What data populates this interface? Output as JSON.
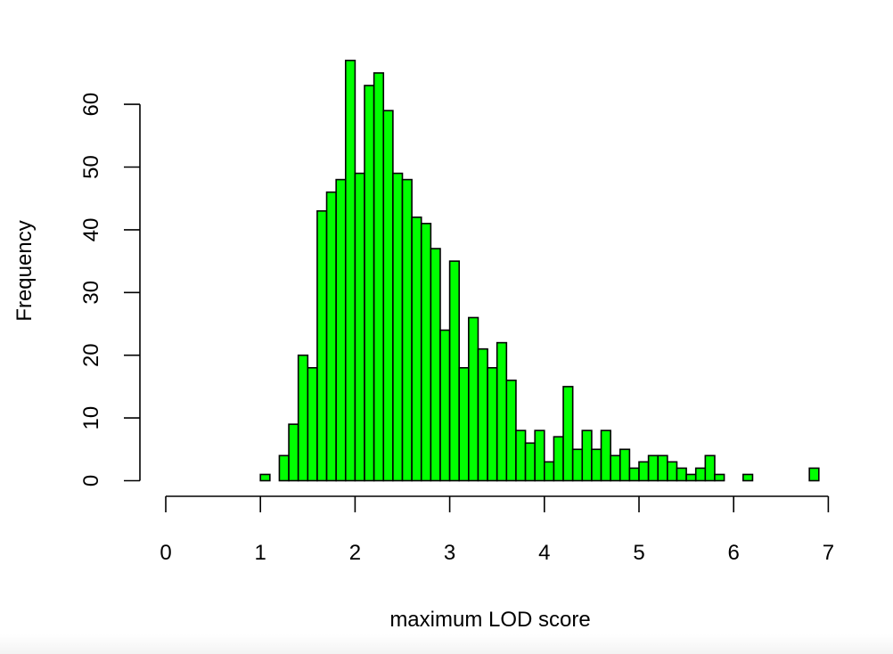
{
  "chart_data": {
    "type": "bar",
    "title": "",
    "xlabel": "maximum LOD score",
    "ylabel": "Frequency",
    "bin_width": 0.1,
    "x_bin_starts": [
      1.0,
      1.1,
      1.2,
      1.3,
      1.4,
      1.5,
      1.6,
      1.7,
      1.8,
      1.9,
      2.0,
      2.1,
      2.2,
      2.3,
      2.4,
      2.5,
      2.6,
      2.7,
      2.8,
      2.9,
      3.0,
      3.1,
      3.2,
      3.3,
      3.4,
      3.5,
      3.6,
      3.7,
      3.8,
      3.9,
      4.0,
      4.1,
      4.2,
      4.3,
      4.4,
      4.5,
      4.6,
      4.7,
      4.8,
      4.9,
      5.0,
      5.1,
      5.2,
      5.3,
      5.4,
      5.5,
      5.6,
      5.7,
      5.8,
      5.9,
      6.0,
      6.1,
      6.2,
      6.3,
      6.4,
      6.5,
      6.6,
      6.7,
      6.8
    ],
    "values": [
      1,
      0,
      4,
      9,
      20,
      18,
      43,
      46,
      48,
      67,
      49,
      63,
      65,
      59,
      49,
      48,
      42,
      41,
      37,
      24,
      35,
      18,
      26,
      21,
      18,
      22,
      16,
      8,
      6,
      8,
      3,
      7,
      15,
      5,
      8,
      5,
      8,
      4,
      5,
      2,
      3,
      4,
      4,
      3,
      2,
      1,
      2,
      4,
      1,
      0,
      0,
      1,
      0,
      0,
      0,
      0,
      0,
      0,
      2
    ],
    "xlim": [
      0,
      7
    ],
    "ylim": [
      0,
      67
    ],
    "x_ticks": [
      0,
      1,
      2,
      3,
      4,
      5,
      6,
      7
    ],
    "y_ticks": [
      0,
      10,
      20,
      30,
      40,
      50,
      60
    ],
    "bar_color": "#00ff00",
    "edge_color": "#000000",
    "grid": false
  }
}
